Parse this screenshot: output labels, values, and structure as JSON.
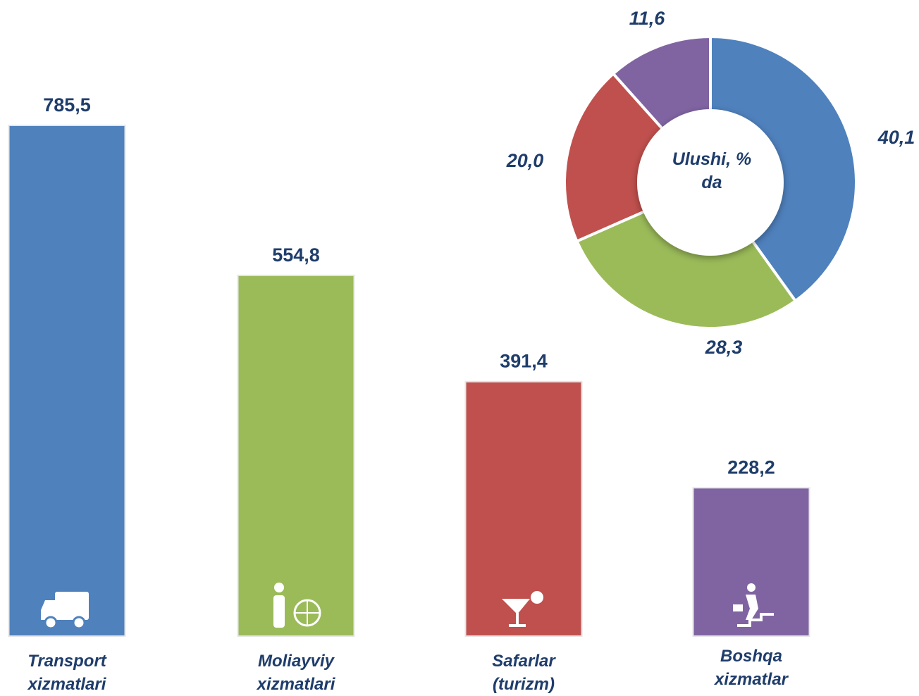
{
  "chart_data": [
    {
      "type": "bar",
      "categories": [
        "Transport xizmatlari",
        "Moliayviy xizmatlari",
        "Safarlar (turizm)",
        "Boshqa xizmatlar"
      ],
      "values": [
        785.5,
        554.8,
        391.4,
        228.2
      ],
      "value_labels": [
        "785,5",
        "554,8",
        "391,4",
        "228,2"
      ],
      "colors": [
        "#4f81bd",
        "#9bbb59",
        "#c0504d",
        "#8064a2"
      ]
    },
    {
      "type": "donut",
      "center_label": "Ulushi, % da",
      "values": [
        40.1,
        28.3,
        20.0,
        11.6
      ],
      "value_labels": [
        "40,1",
        "28,3",
        "20,0",
        "11,6"
      ],
      "colors": [
        "#4f81bd",
        "#9bbb59",
        "#c0504d",
        "#8064a2"
      ]
    }
  ]
}
